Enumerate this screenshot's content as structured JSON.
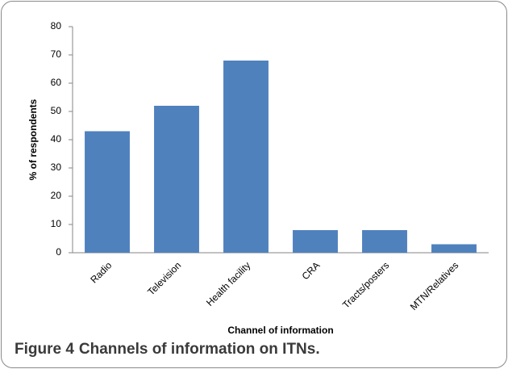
{
  "chart_data": {
    "type": "bar",
    "categories": [
      "Radio",
      "Television",
      "Health facility",
      "CRA",
      "Tracts/posters",
      "MTN/Relatives"
    ],
    "values": [
      43,
      52,
      68,
      8,
      8,
      3
    ],
    "color": "#4f81bd",
    "ylim": [
      0,
      80
    ],
    "yticks": [
      0,
      10,
      20,
      30,
      40,
      50,
      60,
      70,
      80
    ],
    "ylabel": "% of respondents",
    "xlabel": "Channel of information",
    "grid": false
  },
  "caption": {
    "label": "Figure 4",
    "text": "Channels of information on ITNs."
  }
}
